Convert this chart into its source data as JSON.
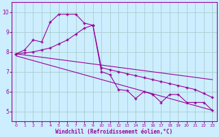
{
  "xlabel": "Windchill (Refroidissement éolien,°C)",
  "xlim": [
    -0.5,
    23.5
  ],
  "ylim": [
    4.5,
    10.5
  ],
  "yticks": [
    5,
    6,
    7,
    8,
    9,
    10
  ],
  "xticks": [
    0,
    1,
    2,
    3,
    4,
    5,
    6,
    7,
    8,
    9,
    10,
    11,
    12,
    13,
    14,
    15,
    16,
    17,
    18,
    19,
    20,
    21,
    22,
    23
  ],
  "bg_color": "#cceeff",
  "grid_color": "#aacccc",
  "line_color": "#990099",
  "series": [
    {
      "x": [
        0,
        1,
        2,
        3,
        4,
        5,
        6,
        7,
        8,
        9,
        10,
        11,
        12,
        13,
        14,
        15,
        16,
        17,
        18,
        19,
        20,
        21,
        22,
        23
      ],
      "y": [
        7.9,
        8.1,
        8.6,
        8.5,
        9.5,
        9.9,
        9.9,
        9.9,
        9.45,
        9.35,
        7.0,
        6.85,
        6.1,
        6.05,
        5.65,
        6.0,
        5.85,
        5.45,
        5.85,
        5.85,
        5.45,
        5.45,
        5.45,
        5.05
      ],
      "marker": "+",
      "markersize": 3.5,
      "linewidth": 0.8
    },
    {
      "x": [
        0,
        1,
        2,
        3,
        4,
        5,
        6,
        7,
        8,
        9,
        10,
        11,
        12,
        13,
        14,
        15,
        16,
        17,
        18,
        19,
        20,
        21,
        22,
        23
      ],
      "y": [
        7.9,
        7.95,
        8.0,
        8.1,
        8.2,
        8.4,
        8.6,
        8.9,
        9.2,
        9.35,
        7.2,
        7.1,
        7.0,
        6.9,
        6.8,
        6.7,
        6.6,
        6.5,
        6.4,
        6.3,
        6.2,
        6.1,
        5.9,
        5.7
      ],
      "marker": "+",
      "markersize": 3.5,
      "linewidth": 0.8
    },
    {
      "x": [
        0,
        23
      ],
      "y": [
        7.9,
        6.6
      ],
      "marker": null,
      "markersize": 0,
      "linewidth": 0.8
    },
    {
      "x": [
        0,
        23
      ],
      "y": [
        7.8,
        5.05
      ],
      "marker": null,
      "markersize": 0,
      "linewidth": 0.8
    }
  ]
}
